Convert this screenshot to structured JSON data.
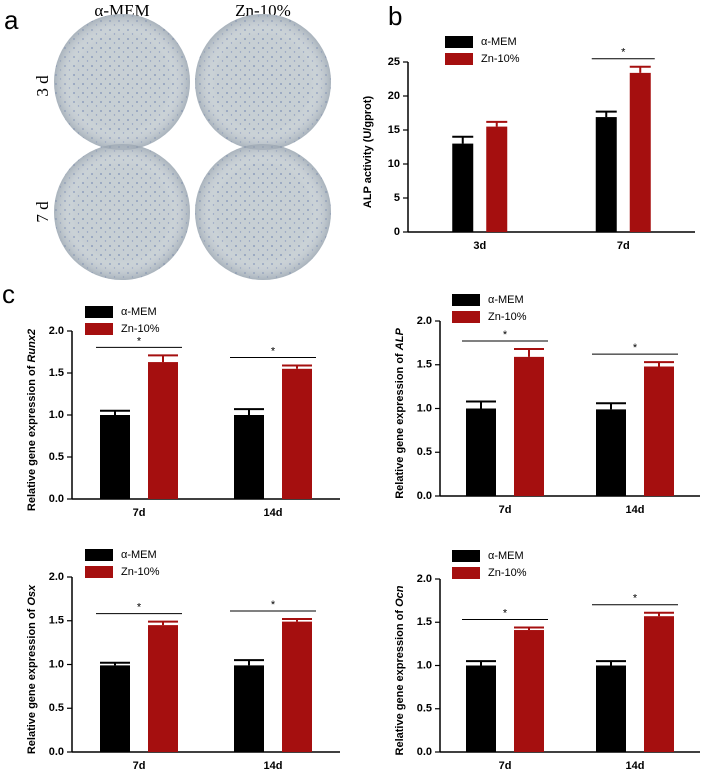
{
  "panel_a": {
    "label": "a",
    "columns": [
      "α-MEM",
      "Zn-10%"
    ],
    "rows": [
      "3 d",
      "7 d"
    ]
  },
  "chart_data": [
    {
      "type": "bar",
      "panel": "b",
      "ylabel": "ALP activity (U/gprot)",
      "categories": [
        "3d",
        "7d"
      ],
      "series": [
        {
          "name": "α-MEM",
          "color": "#000000",
          "values": [
            13.0,
            16.9
          ],
          "errors": [
            1.0,
            0.8
          ]
        },
        {
          "name": "Zn-10%",
          "color": "#a50f0f",
          "values": [
            15.5,
            23.4
          ],
          "errors": [
            0.7,
            0.9
          ]
        }
      ],
      "significance": [
        null,
        "*"
      ],
      "ylim": [
        0,
        25
      ],
      "yticks": [
        0,
        5,
        10,
        15,
        20,
        25
      ]
    },
    {
      "type": "bar",
      "panel": "c",
      "ylabel": "Relative gene expression of ",
      "gene": "Runx2",
      "categories": [
        "7d",
        "14d"
      ],
      "series": [
        {
          "name": "α-MEM",
          "color": "#000000",
          "values": [
            1.0,
            1.0
          ],
          "errors": [
            0.05,
            0.07
          ]
        },
        {
          "name": "Zn-10%",
          "color": "#a50f0f",
          "values": [
            1.63,
            1.55
          ],
          "errors": [
            0.08,
            0.04
          ]
        }
      ],
      "significance": [
        "*",
        "*"
      ],
      "ylim": [
        0,
        2
      ],
      "yticks": [
        {
          "value": 0,
          "label": "0.0"
        },
        0.5,
        {
          "value": 1,
          "label": "1.0"
        },
        1.5,
        {
          "value": 2,
          "label": "2.0"
        }
      ]
    },
    {
      "type": "bar",
      "ylabel": "Relative gene expression of ",
      "gene": "ALP",
      "categories": [
        "7d",
        "14d"
      ],
      "series": [
        {
          "name": "α-MEM",
          "color": "#000000",
          "values": [
            1.0,
            0.99
          ],
          "errors": [
            0.08,
            0.07
          ]
        },
        {
          "name": "Zn-10%",
          "color": "#a50f0f",
          "values": [
            1.59,
            1.48
          ],
          "errors": [
            0.09,
            0.05
          ]
        }
      ],
      "significance": [
        "*",
        "*"
      ],
      "ylim": [
        0,
        2
      ],
      "yticks": [
        {
          "value": 0,
          "label": "0.0"
        },
        0.5,
        {
          "value": 1,
          "label": "1.0"
        },
        1.5,
        {
          "value": 2,
          "label": "2.0"
        }
      ]
    },
    {
      "type": "bar",
      "ylabel": "Relative gene expression of ",
      "gene": "Osx",
      "categories": [
        "7d",
        "14d"
      ],
      "series": [
        {
          "name": "α-MEM",
          "color": "#000000",
          "values": [
            0.99,
            0.99
          ],
          "errors": [
            0.03,
            0.06
          ]
        },
        {
          "name": "Zn-10%",
          "color": "#a50f0f",
          "values": [
            1.45,
            1.49
          ],
          "errors": [
            0.04,
            0.03
          ]
        }
      ],
      "significance": [
        "*",
        "*"
      ],
      "ylim": [
        0,
        2
      ],
      "yticks": [
        {
          "value": 0,
          "label": "0.0"
        },
        0.5,
        {
          "value": 1,
          "label": "1.0"
        },
        1.5,
        {
          "value": 2,
          "label": "2.0"
        }
      ]
    },
    {
      "type": "bar",
      "ylabel": "Relative gene expression of ",
      "gene": "Ocn",
      "categories": [
        "7d",
        "14d"
      ],
      "series": [
        {
          "name": "α-MEM",
          "color": "#000000",
          "values": [
            1.0,
            1.0
          ],
          "errors": [
            0.05,
            0.05
          ]
        },
        {
          "name": "Zn-10%",
          "color": "#a50f0f",
          "values": [
            1.41,
            1.57
          ],
          "errors": [
            0.03,
            0.04
          ]
        }
      ],
      "significance": [
        "*",
        "*"
      ],
      "ylim": [
        0,
        2
      ],
      "yticks": [
        {
          "value": 0,
          "label": "0.0"
        },
        0.5,
        {
          "value": 1,
          "label": "1.0"
        },
        1.5,
        {
          "value": 2,
          "label": "2.0"
        }
      ]
    }
  ]
}
